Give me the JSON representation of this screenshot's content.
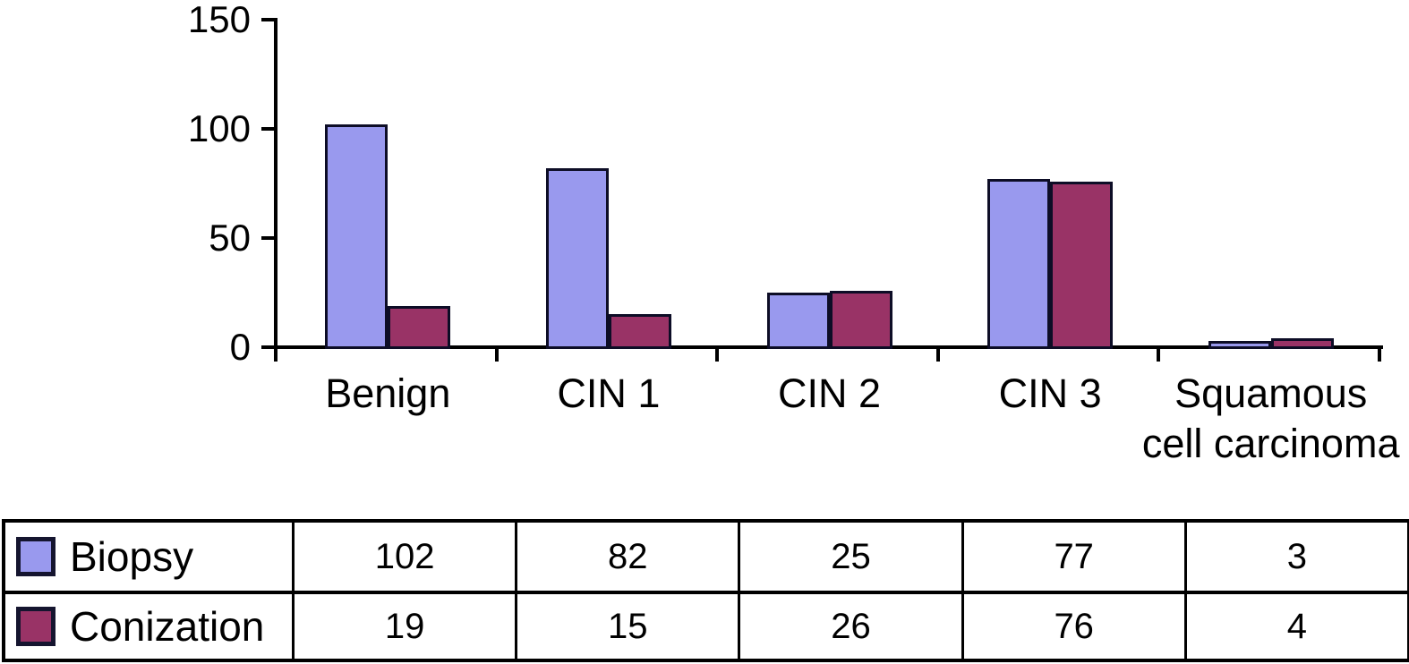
{
  "chart_data": {
    "type": "bar",
    "title": "",
    "xlabel": "",
    "ylabel": "",
    "categories": [
      "Benign",
      "CIN 1",
      "CIN 2",
      "CIN 3",
      "Squamous cell carcinoma"
    ],
    "series": [
      {
        "name": "Biopsy",
        "color": "#9999ee",
        "border_color": "#0d0d26",
        "values": [
          102,
          82,
          25,
          77,
          3
        ]
      },
      {
        "name": "Conization",
        "color": "#993366",
        "border_color": "#0d0d26",
        "values": [
          19,
          15,
          26,
          76,
          4
        ]
      }
    ],
    "ylim": [
      0,
      150
    ],
    "yticks": [
      0,
      50,
      100,
      150
    ],
    "grid": false,
    "legend_position": "table-below-chart"
  },
  "colors": {
    "axis": "#000000",
    "text": "#000000",
    "background": "#ffffff",
    "biopsy_fill": "#9999ee",
    "conization_fill": "#993366"
  }
}
